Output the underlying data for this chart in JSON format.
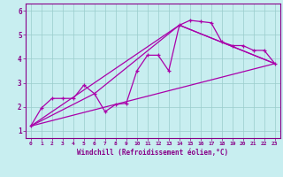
{
  "xlabel": "Windchill (Refroidissement éolien,°C)",
  "background_color": "#c8eef0",
  "grid_color": "#99cccc",
  "line_color": "#aa00aa",
  "xlim": [
    -0.5,
    23.5
  ],
  "ylim": [
    0.7,
    6.3
  ],
  "xticks": [
    0,
    1,
    2,
    3,
    4,
    5,
    6,
    7,
    8,
    9,
    10,
    11,
    12,
    13,
    14,
    15,
    16,
    17,
    18,
    19,
    20,
    21,
    22,
    23
  ],
  "yticks": [
    1,
    2,
    3,
    4,
    5,
    6
  ],
  "series1_x": [
    0,
    1,
    2,
    3,
    4,
    5,
    6,
    7,
    8,
    9,
    10,
    11,
    12,
    13,
    14,
    15,
    16,
    17,
    18,
    19,
    20,
    21,
    22,
    23
  ],
  "series1_y": [
    1.2,
    1.95,
    2.35,
    2.35,
    2.35,
    2.9,
    2.55,
    1.8,
    2.1,
    2.15,
    3.5,
    4.15,
    4.15,
    3.5,
    5.4,
    5.6,
    5.55,
    5.5,
    4.7,
    4.55,
    4.55,
    4.35,
    4.35,
    3.8
  ],
  "series2_x": [
    0,
    23
  ],
  "series2_y": [
    1.2,
    3.8
  ],
  "series3_x": [
    0,
    14,
    23
  ],
  "series3_y": [
    1.2,
    5.4,
    3.8
  ],
  "series4_x": [
    0,
    6,
    14,
    23
  ],
  "series4_y": [
    1.2,
    2.55,
    5.4,
    3.8
  ]
}
